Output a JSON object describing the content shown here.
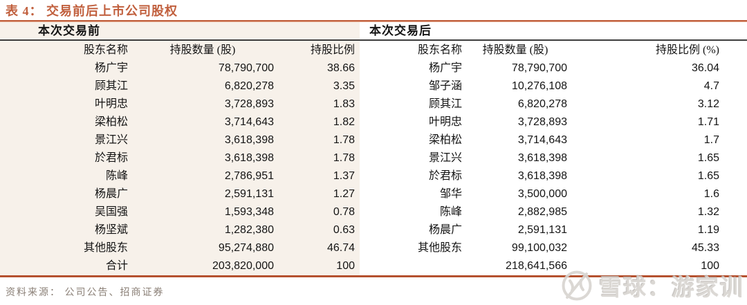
{
  "page": {
    "title": "表 4： 交易前后上市公司股权",
    "source": "资料来源： 公司公告、招商证券"
  },
  "colors": {
    "accent": "#c1603e",
    "left_panel_bg": "#f7f1ea",
    "thin_rule": "#3d3d3d",
    "bottom_rule": "#b5512f",
    "source_text": "#8a7f76",
    "watermark_gray": "#d8d5d1"
  },
  "table_before": {
    "section_label": "本次交易前",
    "columns": [
      "股东名称",
      "持股数量 (股)",
      "持股比例"
    ],
    "rows": [
      [
        "杨广宇",
        "78,790,700",
        "38.66"
      ],
      [
        "顾其江",
        "6,820,278",
        "3.35"
      ],
      [
        "叶明忠",
        "3,728,893",
        "1.83"
      ],
      [
        "梁柏松",
        "3,714,643",
        "1.82"
      ],
      [
        "景江兴",
        "3,618,398",
        "1.78"
      ],
      [
        "於君标",
        "3,618,398",
        "1.78"
      ],
      [
        "陈峰",
        "2,786,951",
        "1.37"
      ],
      [
        "杨晨广",
        "2,591,131",
        "1.27"
      ],
      [
        "吴国强",
        "1,593,348",
        "0.78"
      ],
      [
        "杨坚斌",
        "1,282,380",
        "0.63"
      ],
      [
        "其他股东",
        "95,274,880",
        "46.74"
      ],
      [
        "合计",
        "203,820,000",
        "100"
      ]
    ]
  },
  "table_after": {
    "section_label": "本次交易后",
    "columns": [
      "股东名称",
      "持股数量 (股)",
      "持股比例 (%)"
    ],
    "rows": [
      [
        "杨广宇",
        "78,790,700",
        "36.04"
      ],
      [
        "邹子涵",
        "10,276,108",
        "4.7"
      ],
      [
        "顾其江",
        "6,820,278",
        "3.12"
      ],
      [
        "叶明忠",
        "3,728,893",
        "1.71"
      ],
      [
        "梁柏松",
        "3,714,643",
        "1.7"
      ],
      [
        "景江兴",
        "3,618,398",
        "1.65"
      ],
      [
        "於君标",
        "3,618,398",
        "1.65"
      ],
      [
        "邹华",
        "3,500,000",
        "1.6"
      ],
      [
        "陈峰",
        "2,882,985",
        "1.32"
      ],
      [
        "杨晨广",
        "2,591,131",
        "1.19"
      ],
      [
        "其他股东",
        "99,100,032",
        "45.33"
      ],
      [
        "",
        "218,641,566",
        "100"
      ]
    ]
  },
  "watermark": {
    "icon": "xueqiu-logo",
    "text": "雪球：游家训"
  }
}
